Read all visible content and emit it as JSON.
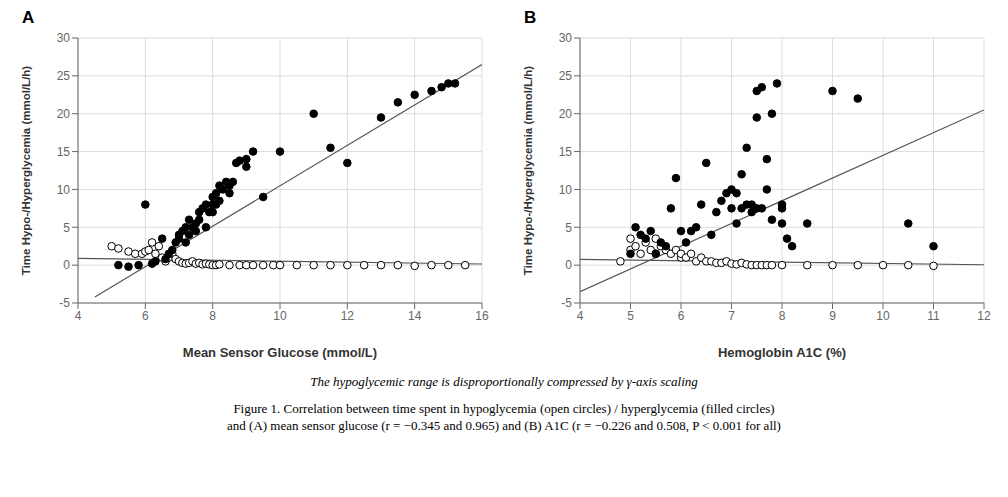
{
  "chart_data": [
    {
      "type": "scatter",
      "title": "A",
      "x_label": "Mean Sensor Glucose (mmol/L)",
      "y_label": "Time Hypo-/Hyperglycemia (mmol/L/h)",
      "xlim": [
        4,
        16
      ],
      "ylim": [
        -5,
        30
      ],
      "xticks": [
        4,
        6,
        8,
        10,
        12,
        14,
        16
      ],
      "yticks": [
        -5,
        0,
        5,
        10,
        15,
        20,
        25,
        30
      ],
      "grid": true,
      "series": [
        {
          "type": "line",
          "color": "#555555",
          "x": [
            4.5,
            16
          ],
          "values": [
            -4.2,
            26.5
          ]
        },
        {
          "type": "line",
          "color": "#555555",
          "x": [
            4,
            16
          ],
          "values": [
            0.9,
            0.15
          ]
        },
        {
          "type": "scatter",
          "marker": "open",
          "color": "#000000",
          "x": [
            5.0,
            5.2,
            5.5,
            5.7,
            5.9,
            6.0,
            6.1,
            6.2,
            6.3,
            6.4,
            6.5,
            6.6,
            6.7,
            6.8,
            6.9,
            7.0,
            7.1,
            7.2,
            7.3,
            7.4,
            7.5,
            7.6,
            7.7,
            7.8,
            7.9,
            8.0,
            8.1,
            8.2,
            8.5,
            8.8,
            9.0,
            9.2,
            9.5,
            9.8,
            10.0,
            10.5,
            11.0,
            11.5,
            12.0,
            12.5,
            13.0,
            13.5,
            14.0,
            14.5,
            15.0,
            15.5
          ],
          "values": [
            2.5,
            2.2,
            1.8,
            1.5,
            1.5,
            1.8,
            2.0,
            3.0,
            1.5,
            2.5,
            1.0,
            0.5,
            1.0,
            1.5,
            0.8,
            0.5,
            0.3,
            0.2,
            0.3,
            0.5,
            0.2,
            0.3,
            0.1,
            0.2,
            0.1,
            0.0,
            0.0,
            0.1,
            0.0,
            0.0,
            0.0,
            0.0,
            0.0,
            0.0,
            0.0,
            0.0,
            0.0,
            0.0,
            0.0,
            0.0,
            0.0,
            0.0,
            -0.1,
            0.0,
            0.0,
            0.0
          ]
        },
        {
          "type": "scatter",
          "marker": "filled",
          "color": "#000000",
          "x": [
            5.2,
            5.5,
            5.8,
            6.0,
            6.2,
            6.3,
            6.5,
            6.6,
            6.7,
            6.8,
            6.9,
            7.0,
            7.0,
            7.1,
            7.2,
            7.2,
            7.3,
            7.3,
            7.4,
            7.5,
            7.5,
            7.6,
            7.6,
            7.7,
            7.8,
            7.8,
            7.9,
            8.0,
            8.0,
            8.0,
            8.1,
            8.1,
            8.2,
            8.2,
            8.3,
            8.4,
            8.5,
            8.5,
            8.6,
            8.7,
            8.8,
            9.0,
            9.0,
            9.2,
            9.5,
            10.0,
            11.0,
            11.5,
            12.0,
            13.0,
            13.5,
            14.0,
            14.5,
            14.8,
            15.0,
            15.2
          ],
          "values": [
            0.0,
            -0.2,
            0.0,
            8.0,
            0.2,
            0.5,
            3.5,
            0.8,
            1.5,
            2.0,
            3.0,
            3.5,
            4.0,
            4.5,
            3.0,
            5.0,
            4.0,
            6.0,
            5.0,
            4.5,
            5.5,
            6.0,
            7.0,
            7.5,
            5.0,
            8.0,
            7.0,
            7.0,
            8.0,
            9.0,
            8.0,
            9.5,
            8.5,
            10.5,
            10.0,
            11.0,
            9.5,
            10.5,
            11.0,
            13.5,
            13.8,
            14.0,
            13.0,
            15.0,
            9.0,
            15.0,
            20.0,
            15.5,
            13.5,
            19.5,
            21.5,
            22.5,
            23.0,
            23.5,
            24.0,
            24.0
          ]
        }
      ]
    },
    {
      "type": "scatter",
      "title": "B",
      "x_label": "Hemoglobin A1C (%)",
      "y_label": "Time Hypo-/Hyperglycemia (mmol/L/h)",
      "xlim": [
        4,
        12
      ],
      "ylim": [
        -5,
        30
      ],
      "xticks": [
        4,
        5,
        6,
        7,
        8,
        9,
        10,
        11,
        12
      ],
      "yticks": [
        -5,
        0,
        5,
        10,
        15,
        20,
        25,
        30
      ],
      "grid": true,
      "series": [
        {
          "type": "line",
          "color": "#555555",
          "x": [
            4,
            12
          ],
          "values": [
            -3.5,
            20.5
          ]
        },
        {
          "type": "line",
          "color": "#555555",
          "x": [
            4,
            12
          ],
          "values": [
            0.75,
            0.05
          ]
        },
        {
          "type": "scatter",
          "marker": "open",
          "color": "#000000",
          "x": [
            4.8,
            5.0,
            5.0,
            5.1,
            5.2,
            5.3,
            5.4,
            5.5,
            5.5,
            5.6,
            5.7,
            5.8,
            5.9,
            6.0,
            6.0,
            6.1,
            6.2,
            6.3,
            6.4,
            6.5,
            6.6,
            6.7,
            6.8,
            6.9,
            7.0,
            7.1,
            7.2,
            7.3,
            7.4,
            7.5,
            7.6,
            7.7,
            7.8,
            8.0,
            8.5,
            9.0,
            9.5,
            10.0,
            10.5,
            11.0
          ],
          "values": [
            0.5,
            3.5,
            2.0,
            2.5,
            1.5,
            3.0,
            2.0,
            3.5,
            1.5,
            2.5,
            2.0,
            1.5,
            2.0,
            1.0,
            1.5,
            1.0,
            1.5,
            0.5,
            1.0,
            0.5,
            0.5,
            0.3,
            0.3,
            0.5,
            0.2,
            0.1,
            0.3,
            0.1,
            0.0,
            0.0,
            0.0,
            0.0,
            0.0,
            0.0,
            0.0,
            0.0,
            0.0,
            0.0,
            0.0,
            -0.1
          ]
        },
        {
          "type": "scatter",
          "marker": "filled",
          "color": "#000000",
          "x": [
            5.0,
            5.1,
            5.2,
            5.3,
            5.4,
            5.5,
            5.6,
            5.7,
            5.8,
            5.9,
            6.0,
            6.1,
            6.2,
            6.3,
            6.4,
            6.5,
            6.6,
            6.7,
            6.8,
            6.9,
            7.0,
            7.0,
            7.1,
            7.1,
            7.2,
            7.2,
            7.3,
            7.3,
            7.4,
            7.4,
            7.5,
            7.5,
            7.5,
            7.6,
            7.6,
            7.7,
            7.7,
            7.8,
            7.8,
            7.9,
            8.0,
            8.0,
            8.0,
            8.1,
            8.2,
            8.5,
            9.0,
            9.5,
            10.5,
            11.0
          ],
          "values": [
            1.5,
            5.0,
            4.0,
            3.5,
            4.5,
            1.5,
            3.0,
            2.5,
            7.5,
            11.5,
            4.5,
            3.0,
            4.5,
            5.0,
            8.0,
            13.5,
            4.0,
            7.0,
            8.5,
            9.5,
            7.5,
            10.0,
            5.5,
            9.5,
            7.5,
            12.0,
            8.0,
            15.5,
            7.0,
            8.0,
            7.5,
            19.5,
            23.0,
            7.5,
            23.5,
            10.0,
            14.0,
            6.0,
            20.0,
            24.0,
            5.5,
            7.5,
            8.0,
            3.5,
            2.5,
            5.5,
            23.0,
            22.0,
            5.5,
            2.5
          ]
        }
      ]
    }
  ],
  "annotations": [
    "The hypoglycemic range is disproportionally compressed by γ-axis scaling",
    "Figure 1. Correlation between time spent in hypoglycemia (open circles) / hyperglycemia (filled circles)",
    "and (A) mean sensor glucose (r = −0.345 and 0.965) and (B) A1C (r = −0.226 and 0.508, P < 0.001 for all)"
  ]
}
